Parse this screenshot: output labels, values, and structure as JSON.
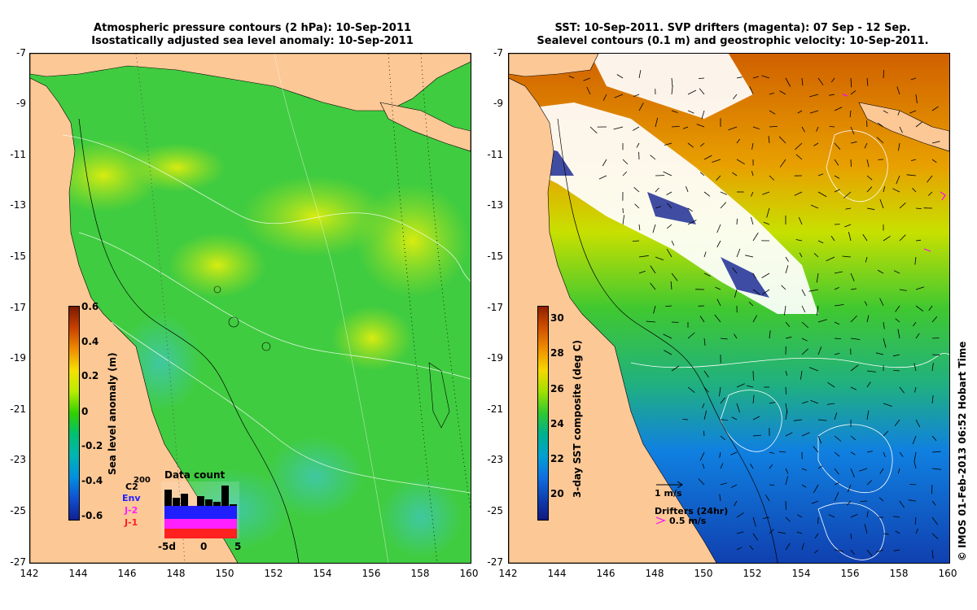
{
  "left_panel": {
    "title_line1": "Atmospheric pressure contours (2 hPa): 10-Sep-2011",
    "title_line2": "Isostatically adjusted sea level anomaly: 10-Sep-2011",
    "y_ticks": [
      "-7",
      "-9",
      "-11",
      "-13",
      "-15",
      "-17",
      "-19",
      "-21",
      "-23",
      "-25",
      "-27"
    ],
    "x_ticks": [
      "142",
      "144",
      "146",
      "148",
      "150",
      "152",
      "154",
      "156",
      "158",
      "160"
    ],
    "colorbar": {
      "label": "Sea level anomaly (m)",
      "ticks": [
        "0.6",
        "0.4",
        "0.2",
        "0",
        "-0.2",
        "-0.4",
        "-0.6"
      ],
      "colors": [
        "#7a1a00",
        "#c84000",
        "#f08c00",
        "#f5e000",
        "#b8ec00",
        "#30d000",
        "#00c070",
        "#00b4b4",
        "#0090e0",
        "#1050d0",
        "#102090"
      ]
    },
    "data_count": {
      "title": "Data count",
      "series": [
        "C2",
        "Env",
        "J-2",
        "J-1"
      ],
      "series_colors": [
        "#000000",
        "#2020ff",
        "#ff20ff",
        "#ff2020"
      ],
      "x_ticks": [
        "-5d",
        "0",
        "5"
      ],
      "y_top": "200"
    }
  },
  "right_panel": {
    "title_line1": "SST: 10-Sep-2011. SVP drifters (magenta): 07 Sep - 12 Sep.",
    "title_line2": "Sealevel contours (0.1 m) and geostrophic velocity: 10-Sep-2011.",
    "y_ticks": [
      "-7",
      "-9",
      "-11",
      "-13",
      "-15",
      "-17",
      "-19",
      "-21",
      "-23",
      "-25",
      "-27"
    ],
    "x_ticks": [
      "142",
      "144",
      "146",
      "148",
      "150",
      "152",
      "154",
      "156",
      "158",
      "160"
    ],
    "colorbar": {
      "label": "3-day SST composite (deg C)",
      "ticks": [
        "30",
        "28",
        "26",
        "24",
        "22",
        "20"
      ],
      "colors": [
        "#902000",
        "#d05000",
        "#f09000",
        "#f5d800",
        "#a0e000",
        "#30c830",
        "#00b090",
        "#00a0d0",
        "#1070e0",
        "#1040b0",
        "#101880"
      ]
    },
    "velocity_legend": "1 m/s",
    "drifters_legend": "Drifters (24hr)",
    "drifters_speed": "0.5 m/s"
  },
  "copyright": "© IMOS 01-Feb-2013 06:52 Hobart Time",
  "colors": {
    "land": "#fcc896",
    "ocean_green": "#3cd23c",
    "magenta": "#ff00ff"
  }
}
